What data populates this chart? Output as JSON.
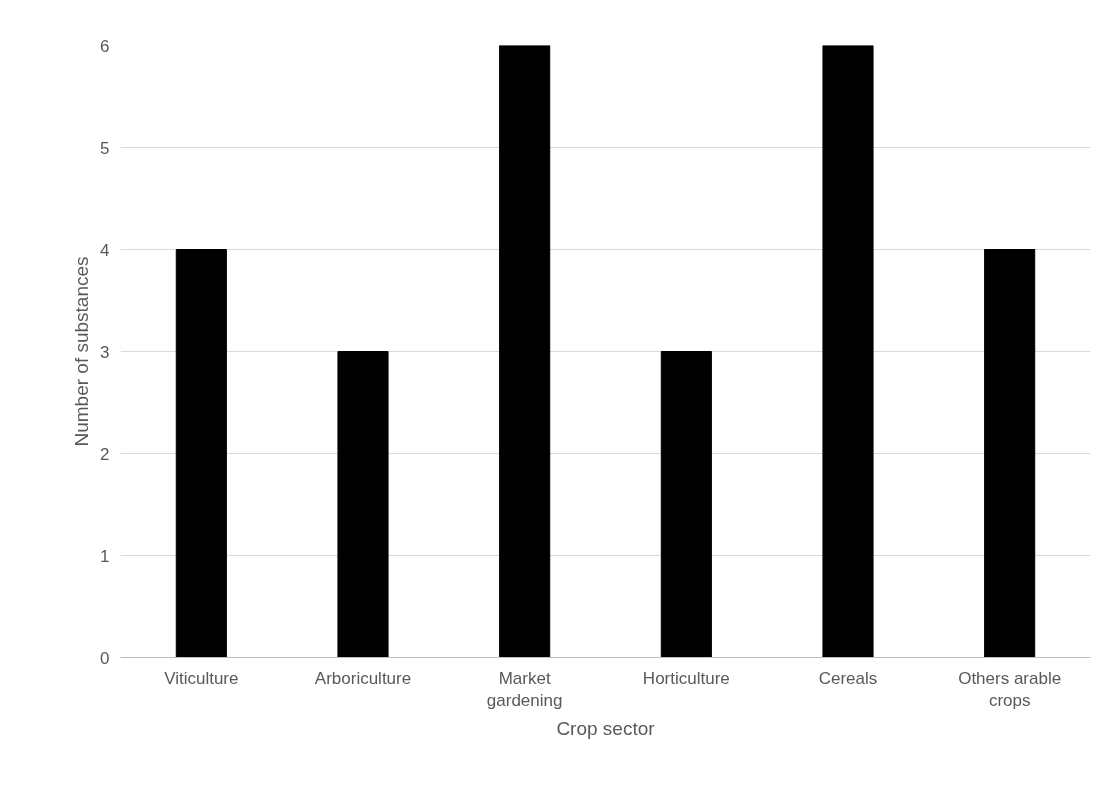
{
  "chart_data": {
    "type": "bar",
    "xlabel": "Crop sector",
    "ylabel": "Number of substances",
    "categories": [
      "Viticulture",
      "Arboriculture",
      "Market gardening",
      "Horticulture",
      "Cereals",
      "Others arable crops"
    ],
    "values": [
      4,
      3,
      6,
      3,
      6,
      4
    ],
    "color": "#000000",
    "ylim": [
      0,
      6
    ],
    "yticks": [
      0,
      1,
      2,
      3,
      4,
      5,
      6
    ],
    "grid": "y"
  }
}
